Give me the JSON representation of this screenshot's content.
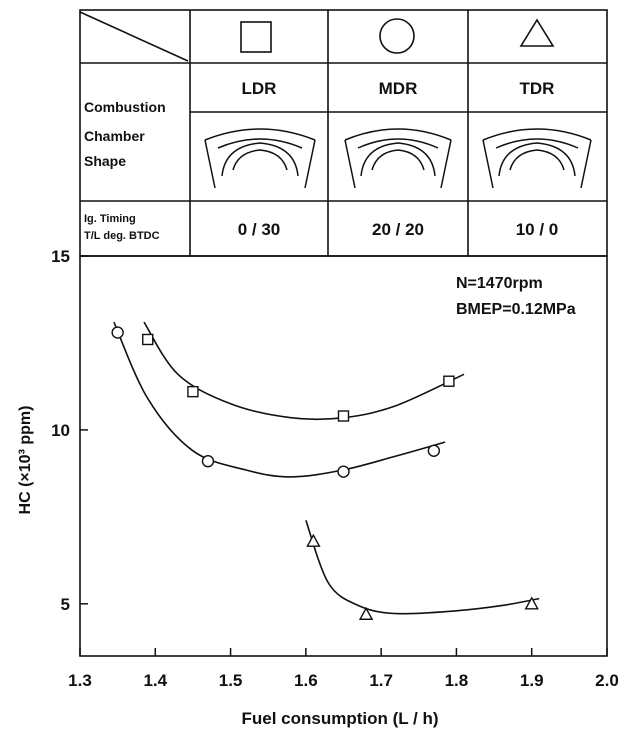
{
  "legend_table": {
    "header_row_label": "",
    "columns": [
      {
        "symbol": "square-icon",
        "name": "LDR",
        "ig_timing": "0 / 30"
      },
      {
        "symbol": "circle-icon",
        "name": "MDR",
        "ig_timing": "20 / 20"
      },
      {
        "symbol": "triangle-icon",
        "name": "TDR",
        "ig_timing": "10 / 0"
      }
    ],
    "row_labels": {
      "combustion_chamber_shape": [
        "Combustion",
        "Chamber",
        "Shape"
      ],
      "ig_timing": [
        "Ig. Timing",
        "T/L deg. BTDC"
      ]
    }
  },
  "conditions": {
    "speed": "N=1470rpm",
    "load": "BMEP=0.12MPa"
  },
  "chart_data": {
    "type": "scatter",
    "title": "",
    "xlabel": "Fuel consumption (L / h)",
    "ylabel": "HC (×10³ ppm)",
    "xlim": [
      1.3,
      2.0
    ],
    "ylim": [
      3.5,
      15
    ],
    "x_ticks": [
      "1.3",
      "1.4",
      "1.5",
      "1.6",
      "1.7",
      "1.8",
      "1.9",
      "2.0"
    ],
    "y_ticks": [
      "5",
      "10",
      "15"
    ],
    "grid": false,
    "fit_curves": true,
    "series": [
      {
        "name": "LDR",
        "marker": "square",
        "x": [
          1.39,
          1.45,
          1.65,
          1.79
        ],
        "y": [
          12.6,
          11.1,
          10.4,
          11.4
        ],
        "curve_x": [
          1.385,
          1.43,
          1.5,
          1.58,
          1.65,
          1.72,
          1.81
        ],
        "curve_y": [
          13.1,
          11.6,
          10.75,
          10.35,
          10.35,
          10.7,
          11.6
        ]
      },
      {
        "name": "MDR",
        "marker": "circle",
        "x": [
          1.35,
          1.47,
          1.65,
          1.77
        ],
        "y": [
          12.8,
          9.1,
          8.8,
          9.4
        ],
        "curve_x": [
          1.345,
          1.39,
          1.45,
          1.52,
          1.58,
          1.65,
          1.72,
          1.785
        ],
        "curve_y": [
          13.1,
          10.9,
          9.4,
          8.85,
          8.65,
          8.85,
          9.25,
          9.65
        ]
      },
      {
        "name": "TDR",
        "marker": "triangle",
        "x": [
          1.61,
          1.68,
          1.9
        ],
        "y": [
          6.8,
          4.7,
          5.0
        ],
        "curve_x": [
          1.6,
          1.63,
          1.67,
          1.72,
          1.8,
          1.86,
          1.91
        ],
        "curve_y": [
          7.4,
          5.6,
          4.95,
          4.72,
          4.8,
          4.95,
          5.15
        ]
      }
    ]
  }
}
